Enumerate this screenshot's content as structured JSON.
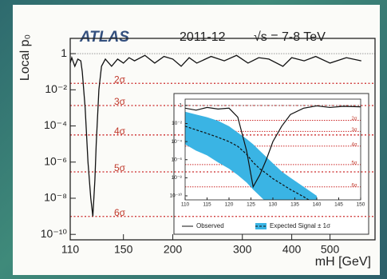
{
  "chart_data": [
    {
      "type": "line",
      "log_x": true,
      "log_y": true,
      "annotations": [
        "ATLAS",
        "2011-12",
        "√s = 7-8 TeV"
      ],
      "ylabel": "Local p₀",
      "xlabel": "mH [GeV]",
      "xlim": [
        110,
        650
      ],
      "xticks": [
        110,
        150,
        200,
        300,
        400,
        500
      ],
      "ylim": [
        7,
        5e-11
      ],
      "yticks": [
        1,
        {
          "value": 0.01,
          "label": "10⁻²"
        },
        {
          "value": 0.0001,
          "label": "10⁻⁴"
        },
        {
          "value": 1e-06,
          "label": "10⁻⁶"
        },
        {
          "value": 1e-08,
          "label": "10⁻⁸"
        },
        {
          "value": 1e-10,
          "label": "10⁻¹⁰"
        }
      ],
      "baseline": 1,
      "sigma_lines": [
        {
          "value": 0.0228,
          "label": "2σ"
        },
        {
          "value": 0.00135,
          "label": "3σ"
        },
        {
          "value": 3.17e-05,
          "label": "4σ"
        },
        {
          "value": 2.87e-07,
          "label": "5σ"
        },
        {
          "value": 9.87e-10,
          "label": "6σ"
        }
      ],
      "x": [
        110,
        111,
        113,
        115,
        117,
        118,
        120,
        122,
        124,
        125.5,
        127,
        128,
        130,
        132,
        135,
        140,
        145,
        150,
        155,
        160,
        170,
        180,
        190,
        200,
        210,
        220,
        230,
        250,
        270,
        290,
        310,
        330,
        350,
        380,
        400,
        430,
        460,
        500,
        550,
        600
      ],
      "series": [
        {
          "color": "#111111",
          "values": [
            0.3,
            0.6,
            0.2,
            0.5,
            0.4,
            0.1,
            0.001,
            1e-06,
            1e-08,
            1e-09,
            1e-07,
            1e-05,
            0.01,
            0.2,
            0.5,
            0.2,
            0.5,
            0.3,
            0.6,
            0.4,
            0.8,
            0.3,
            0.7,
            0.5,
            0.2,
            0.6,
            0.3,
            0.7,
            0.4,
            0.8,
            0.3,
            0.6,
            0.5,
            0.2,
            0.6,
            0.4,
            0.7,
            0.3,
            0.6,
            0.4
          ]
        }
      ]
    },
    {
      "type": "line",
      "log_y": true,
      "xlim": [
        110,
        150
      ],
      "xticks": [
        110,
        115,
        120,
        125,
        130,
        135,
        140,
        145,
        150
      ],
      "ylim": [
        5,
        3.6e-11
      ],
      "yticks": [
        1,
        {
          "value": 0.01,
          "label": "10⁻²"
        },
        {
          "value": 0.0001,
          "label": "10⁻⁴"
        },
        {
          "value": 1e-06,
          "label": "10⁻⁶"
        },
        {
          "value": 1e-08,
          "label": "10⁻⁸"
        },
        {
          "value": 1e-10,
          "label": "10⁻¹⁰"
        }
      ],
      "baseline": 1,
      "sigma_lines": [
        {
          "value": 0.0228,
          "label": "2σ"
        },
        {
          "value": 0.00135,
          "label": "3σ"
        },
        {
          "value": 3.17e-05,
          "label": "4σ"
        },
        {
          "value": 2.87e-07,
          "label": "5σ"
        },
        {
          "value": 9.87e-10,
          "label": "6σ"
        }
      ],
      "x": [
        110,
        112.5,
        115,
        117.5,
        120,
        122,
        124,
        125.5,
        127,
        128.5,
        130,
        132,
        134,
        137,
        140,
        143,
        146,
        150
      ],
      "series": [
        {
          "name": "Observed",
          "color": "#111111",
          "values": [
            0.5,
            0.3,
            0.6,
            0.4,
            0.5,
            0.05,
            1e-05,
            1e-09,
            2e-08,
            1e-06,
            0.0001,
            0.005,
            0.1,
            0.5,
            0.9,
            0.6,
            0.8,
            0.7
          ]
        },
        {
          "name": "Expected Signal ± 1σ",
          "color": "#111111",
          "band_color": "#3ab4e4",
          "dash": true,
          "values": [
            0.005,
            0.002,
            0.0008,
            0.0003,
            0.0001,
            3e-05,
            4e-06,
            5e-07,
            1e-07,
            3e-08,
            8e-09,
            2e-09,
            5e-10,
            8e-11,
            1e-11,
            null,
            null,
            null
          ],
          "upper": [
            0.2,
            0.1,
            0.05,
            0.02,
            0.005,
            0.001,
            0.0002,
            5e-05,
            1e-05,
            2e-06,
            4e-07,
            5e-08,
            1e-08,
            1e-09,
            1e-10,
            null,
            null,
            null
          ],
          "lower": [
            5e-05,
            1e-05,
            3e-06,
            5e-07,
            1e-07,
            2e-08,
            3e-09,
            5e-10,
            1e-10,
            2e-11,
            5e-12,
            1e-12,
            3e-13,
            5e-14,
            1e-14,
            null,
            null,
            null
          ]
        }
      ]
    }
  ]
}
